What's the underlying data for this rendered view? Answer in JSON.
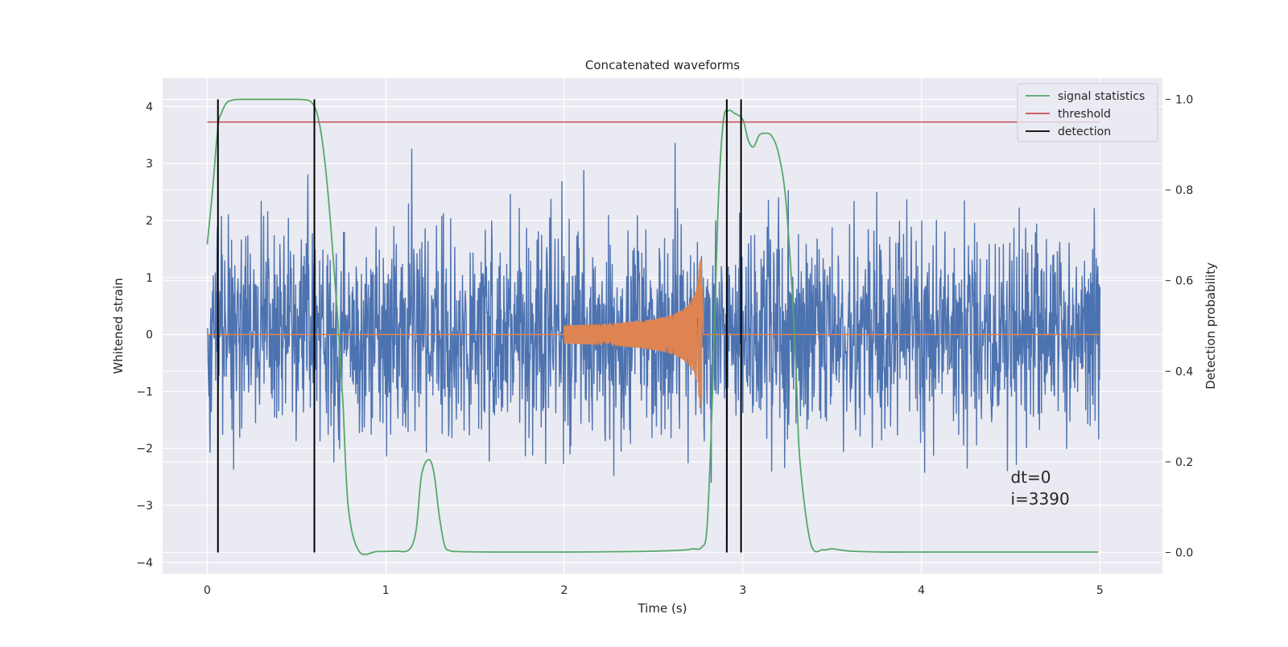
{
  "chart_data": {
    "type": "line",
    "title": "Concatenated waveforms",
    "xlabel": "Time (s)",
    "ylabel": "Whitened strain",
    "ylabel_right": "Detection probability",
    "xlim": [
      -0.25,
      5.35
    ],
    "ylim": [
      -4.2,
      4.5
    ],
    "ylim_right": [
      -0.047,
      1.047
    ],
    "xticks": [
      "0",
      "1",
      "2",
      "3",
      "4",
      "5"
    ],
    "xtick_values": [
      0,
      1,
      2,
      3,
      4,
      5
    ],
    "yticks": [
      "4",
      "3",
      "2",
      "1",
      "0",
      "−1",
      "−2",
      "−3",
      "−4"
    ],
    "ytick_values": [
      4,
      3,
      2,
      1,
      0,
      -1,
      -2,
      -3,
      -4
    ],
    "yticks_right": [
      "1.0",
      "0.8",
      "0.6",
      "0.4",
      "0.2",
      "0.0"
    ],
    "ytick_values_right": [
      1.0,
      0.8,
      0.6,
      0.4,
      0.2,
      0.0
    ],
    "grid": true,
    "legend_position": "top-right",
    "legend": [
      {
        "label": "signal statistics",
        "color": "#55a868"
      },
      {
        "label": "threshold",
        "color": "#c44e52"
      },
      {
        "label": "detection",
        "color": "#000000"
      }
    ],
    "series": [
      {
        "role": "noise strain",
        "axis": "left",
        "color": "#4c72b0",
        "x_range": [
          0,
          5
        ],
        "amplitude_rms": 0.9,
        "y_min": -3.85,
        "y_max": 4.1
      },
      {
        "role": "injected chirp",
        "axis": "left",
        "color": "#dd8452",
        "x_start": 2.0,
        "x_end": 2.77,
        "amplitude_start": 0.15,
        "amplitude_peak": 1.3
      },
      {
        "name": "signal statistics",
        "axis": "right",
        "color": "#55a868",
        "x": [
          0,
          0.03,
          0.06,
          0.08,
          0.11,
          0.15,
          0.2,
          0.3,
          0.4,
          0.5,
          0.55,
          0.58,
          0.61,
          0.64,
          0.67,
          0.7,
          0.73,
          0.76,
          0.79,
          0.85,
          0.95,
          1.05,
          1.13,
          1.17,
          1.2,
          1.24,
          1.27,
          1.3,
          1.33,
          1.36,
          1.4,
          1.6,
          2.0,
          2.4,
          2.65,
          2.72,
          2.77,
          2.8,
          2.83,
          2.86,
          2.89,
          2.92,
          2.95,
          3.0,
          3.03,
          3.06,
          3.09,
          3.12,
          3.16,
          3.2,
          3.24,
          3.28,
          3.3,
          3.32,
          3.38,
          3.45,
          3.5,
          3.6,
          3.8,
          4.0,
          4.5,
          4.99
        ],
        "y": [
          0.68,
          0.8,
          0.94,
          0.97,
          0.993,
          0.999,
          1.0,
          1.0,
          1.0,
          1.0,
          0.999,
          0.995,
          0.975,
          0.92,
          0.82,
          0.68,
          0.52,
          0.33,
          0.1,
          0.003,
          0.002,
          0.003,
          0.006,
          0.05,
          0.17,
          0.205,
          0.175,
          0.08,
          0.015,
          0.004,
          0.002,
          0.001,
          0.001,
          0.002,
          0.005,
          0.008,
          0.012,
          0.06,
          0.35,
          0.75,
          0.95,
          0.975,
          0.97,
          0.955,
          0.91,
          0.895,
          0.92,
          0.925,
          0.92,
          0.88,
          0.78,
          0.55,
          0.38,
          0.2,
          0.02,
          0.006,
          0.008,
          0.003,
          0.001,
          0.001,
          0.001,
          0.001
        ]
      },
      {
        "name": "threshold",
        "axis": "right",
        "color": "#c44e52",
        "x": [
          0,
          5.0
        ],
        "y": [
          0.95,
          0.95
        ]
      }
    ],
    "detections": [
      0.06,
      0.6,
      2.91,
      2.99
    ],
    "detection_range_right": [
      0.0,
      1.0
    ],
    "annotation": {
      "lines": [
        "dt=0",
        "i=3390"
      ],
      "x": 4.5,
      "y_right": 0.1
    }
  }
}
